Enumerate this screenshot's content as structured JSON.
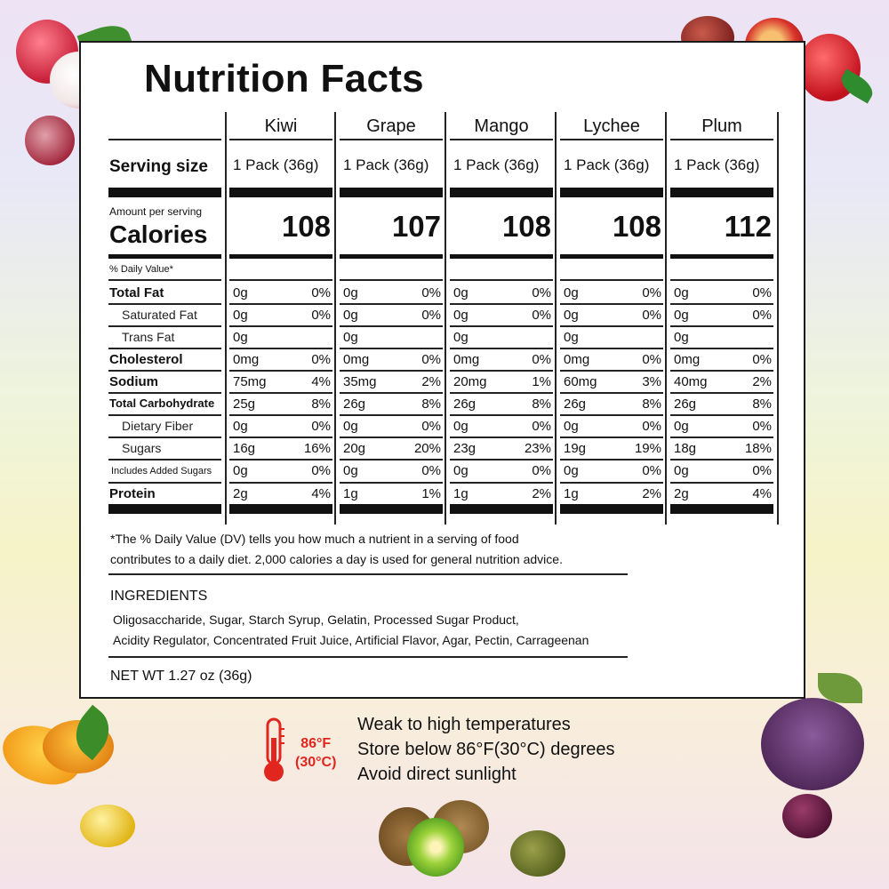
{
  "title": "Nutrition Facts",
  "columns": [
    "Kiwi",
    "Grape",
    "Mango",
    "Lychee",
    "Plum"
  ],
  "serving_label": "Serving size",
  "serving_sizes": [
    "1 Pack (36g)",
    "1 Pack (36g)",
    "1 Pack (36g)",
    "1 Pack (36g)",
    "1 Pack (36g)"
  ],
  "amount_per_serving": "Amount per serving",
  "calories_label": "Calories",
  "calories": [
    "108",
    "107",
    "108",
    "108",
    "112"
  ],
  "daily_value_label": "%  Daily Value*",
  "rows": [
    {
      "label": "Total Fat",
      "style": "bold",
      "values": [
        [
          "0g",
          "0%"
        ],
        [
          "0g",
          "0%"
        ],
        [
          "0g",
          "0%"
        ],
        [
          "0g",
          "0%"
        ],
        [
          "0g",
          "0%"
        ]
      ]
    },
    {
      "label": "Saturated Fat",
      "style": "indent",
      "values": [
        [
          "0g",
          "0%"
        ],
        [
          "0g",
          "0%"
        ],
        [
          "0g",
          "0%"
        ],
        [
          "0g",
          "0%"
        ],
        [
          "0g",
          "0%"
        ]
      ]
    },
    {
      "label": "Trans Fat",
      "style": "indent",
      "values": [
        [
          "0g",
          ""
        ],
        [
          "0g",
          ""
        ],
        [
          "0g",
          ""
        ],
        [
          "0g",
          ""
        ],
        [
          "0g",
          ""
        ]
      ]
    },
    {
      "label": "Cholesterol",
      "style": "bold",
      "values": [
        [
          "0mg",
          "0%"
        ],
        [
          "0mg",
          "0%"
        ],
        [
          "0mg",
          "0%"
        ],
        [
          "0mg",
          "0%"
        ],
        [
          "0mg",
          "0%"
        ]
      ]
    },
    {
      "label": "Sodium",
      "style": "bold",
      "values": [
        [
          "75mg",
          "4%"
        ],
        [
          "35mg",
          "2%"
        ],
        [
          "20mg",
          "1%"
        ],
        [
          "60mg",
          "3%"
        ],
        [
          "40mg",
          "2%"
        ]
      ]
    },
    {
      "label": "Total Carbohydrate",
      "style": "bold",
      "values": [
        [
          "25g",
          "8%"
        ],
        [
          "26g",
          "8%"
        ],
        [
          "26g",
          "8%"
        ],
        [
          "26g",
          "8%"
        ],
        [
          "26g",
          "8%"
        ]
      ]
    },
    {
      "label": "Dietary Fiber",
      "style": "indent",
      "values": [
        [
          "0g",
          "0%"
        ],
        [
          "0g",
          "0%"
        ],
        [
          "0g",
          "0%"
        ],
        [
          "0g",
          "0%"
        ],
        [
          "0g",
          "0%"
        ]
      ]
    },
    {
      "label": "Sugars",
      "style": "indent",
      "values": [
        [
          "16g",
          "16%"
        ],
        [
          "20g",
          "20%"
        ],
        [
          "23g",
          "23%"
        ],
        [
          "19g",
          "19%"
        ],
        [
          "18g",
          "18%"
        ]
      ]
    },
    {
      "label": "Includes  Added Sugars",
      "style": "small",
      "values": [
        [
          "0g",
          "0%"
        ],
        [
          "0g",
          "0%"
        ],
        [
          "0g",
          "0%"
        ],
        [
          "0g",
          "0%"
        ],
        [
          "0g",
          "0%"
        ]
      ]
    },
    {
      "label": "Protein",
      "style": "bold",
      "values": [
        [
          "2g",
          "4%"
        ],
        [
          "1g",
          "1%"
        ],
        [
          "1g",
          "2%"
        ],
        [
          "1g",
          "2%"
        ],
        [
          "2g",
          "4%"
        ]
      ]
    }
  ],
  "footnote_line1": "*The % Daily Value (DV) tells you how much a nutrient in a serving of food",
  "footnote_line2": "contributes to a daily diet. 2,000 calories a day is used for general nutrition advice.",
  "ingredients_heading": "INGREDIENTS",
  "ingredients_line1": "Oligosaccharide, Sugar, Starch Syrup, Gelatin, Processed Sugar Product,",
  "ingredients_line2": "Acidity Regulator, Concentrated Fruit Juice, Artificial Flavor, Agar, Pectin, Carrageenan",
  "net_weight": "NET WT 1.27 oz (36g)",
  "thermometer_f": "86°F",
  "thermometer_c": "(30°C)",
  "storage_lines": [
    "Weak to high temperatures",
    "Store below 86°F(30°C) degrees",
    "Avoid direct sunlight"
  ],
  "colors": {
    "thermometer": "#e0261f",
    "rule": "#111111"
  },
  "icons": [
    "thermometer-icon",
    "lychee-image",
    "plum-image",
    "mango-image",
    "grape-image",
    "kiwi-image"
  ]
}
